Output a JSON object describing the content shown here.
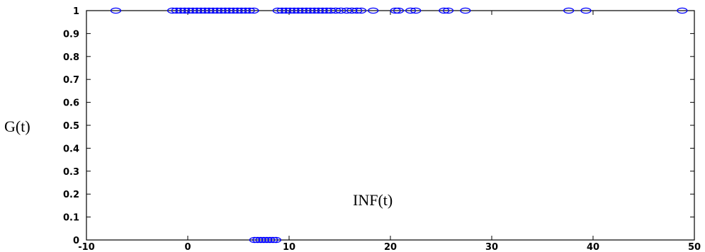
{
  "chart_data": {
    "type": "scatter",
    "xlabel": "",
    "ylabel": "G(t)",
    "annotation": "INF(t)",
    "xlim": [
      -10,
      50
    ],
    "ylim": [
      0,
      1
    ],
    "xticks": [
      -10,
      0,
      10,
      20,
      30,
      40,
      50
    ],
    "yticks": [
      0,
      0.1,
      0.2,
      0.3,
      0.4,
      0.5,
      0.6,
      0.7,
      0.8,
      0.9,
      1
    ],
    "grid": false,
    "marker_color": "#0000ff",
    "series": [
      {
        "values_y": 1,
        "x": [
          -7.1,
          -1.5,
          -1.1,
          -0.7,
          -0.3,
          0.1,
          0.5,
          0.9,
          1.3,
          1.7,
          2.1,
          2.5,
          2.9,
          3.3,
          3.7,
          4.1,
          4.5,
          4.9,
          5.3,
          5.7,
          6.1,
          6.5,
          8.9,
          9.3,
          9.7,
          10.1,
          10.5,
          10.9,
          11.3,
          11.7,
          12.1,
          12.5,
          12.9,
          13.3,
          13.7,
          14.1,
          14.6,
          15.1,
          15.7,
          16.2,
          16.7,
          17.1,
          18.3,
          20.5,
          20.8,
          22.0,
          22.5,
          25.3,
          25.7,
          27.4,
          37.6,
          39.3,
          48.8
        ]
      },
      {
        "values_y": 0,
        "x": [
          6.6,
          6.9,
          7.2,
          7.5,
          7.8,
          8.1,
          8.4,
          8.7
        ]
      }
    ]
  }
}
